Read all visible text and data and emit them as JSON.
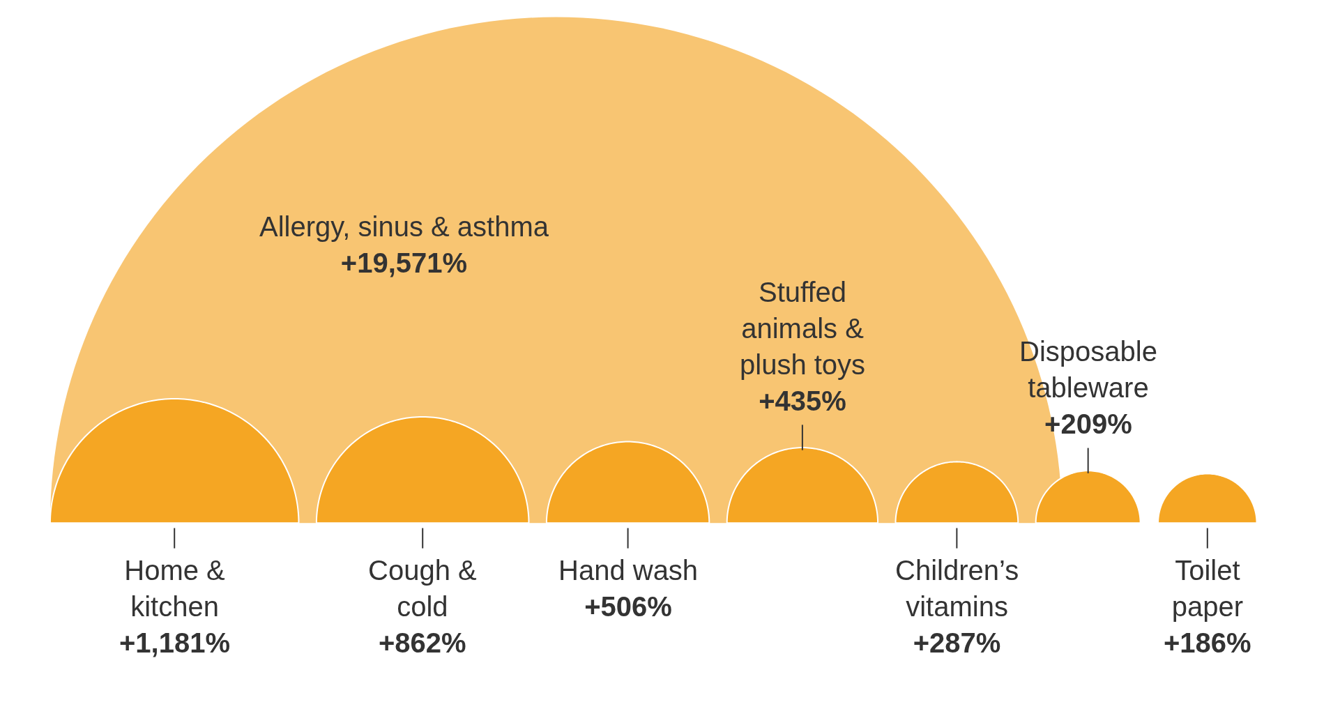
{
  "chart_data": {
    "type": "other",
    "categories": [
      "Allergy, sinus & asthma",
      "Home & kitchen",
      "Cough & cold",
      "Hand wash",
      "Stuffed animals & plush toys",
      "Children’s vitamins",
      "Disposable tableware",
      "Toilet paper"
    ],
    "values": [
      19571,
      1181,
      862,
      506,
      435,
      287,
      209,
      186
    ],
    "colors": [
      "#f8c572",
      "#f5a623",
      "#f5a623",
      "#f5a623",
      "#f5a623",
      "#f5a623",
      "#f5a623",
      "#f5a623"
    ],
    "value_labels": [
      "+19,571%",
      "+1,181%",
      "+862%",
      "+506%",
      "+435%",
      "+287%",
      "+209%",
      "+186%"
    ]
  }
}
